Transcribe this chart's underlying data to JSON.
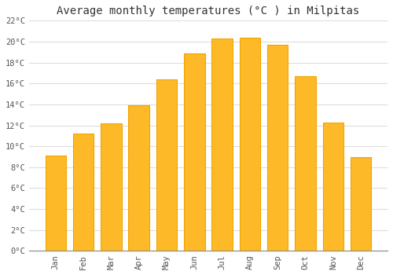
{
  "title": "Average monthly temperatures (°C ) in Milpitas",
  "months": [
    "Jan",
    "Feb",
    "Mar",
    "Apr",
    "May",
    "Jun",
    "Jul",
    "Aug",
    "Sep",
    "Oct",
    "Nov",
    "Dec"
  ],
  "values": [
    9.1,
    11.2,
    12.2,
    13.9,
    16.4,
    18.9,
    20.3,
    20.4,
    19.7,
    16.7,
    12.3,
    9.0
  ],
  "bar_color": "#FDB927",
  "bar_edge_color": "#F0A500",
  "background_color": "#FFFFFF",
  "grid_color": "#DDDDDD",
  "text_color": "#555555",
  "ylim": [
    0,
    22
  ],
  "ytick_step": 2,
  "title_fontsize": 10,
  "tick_fontsize": 7.5
}
